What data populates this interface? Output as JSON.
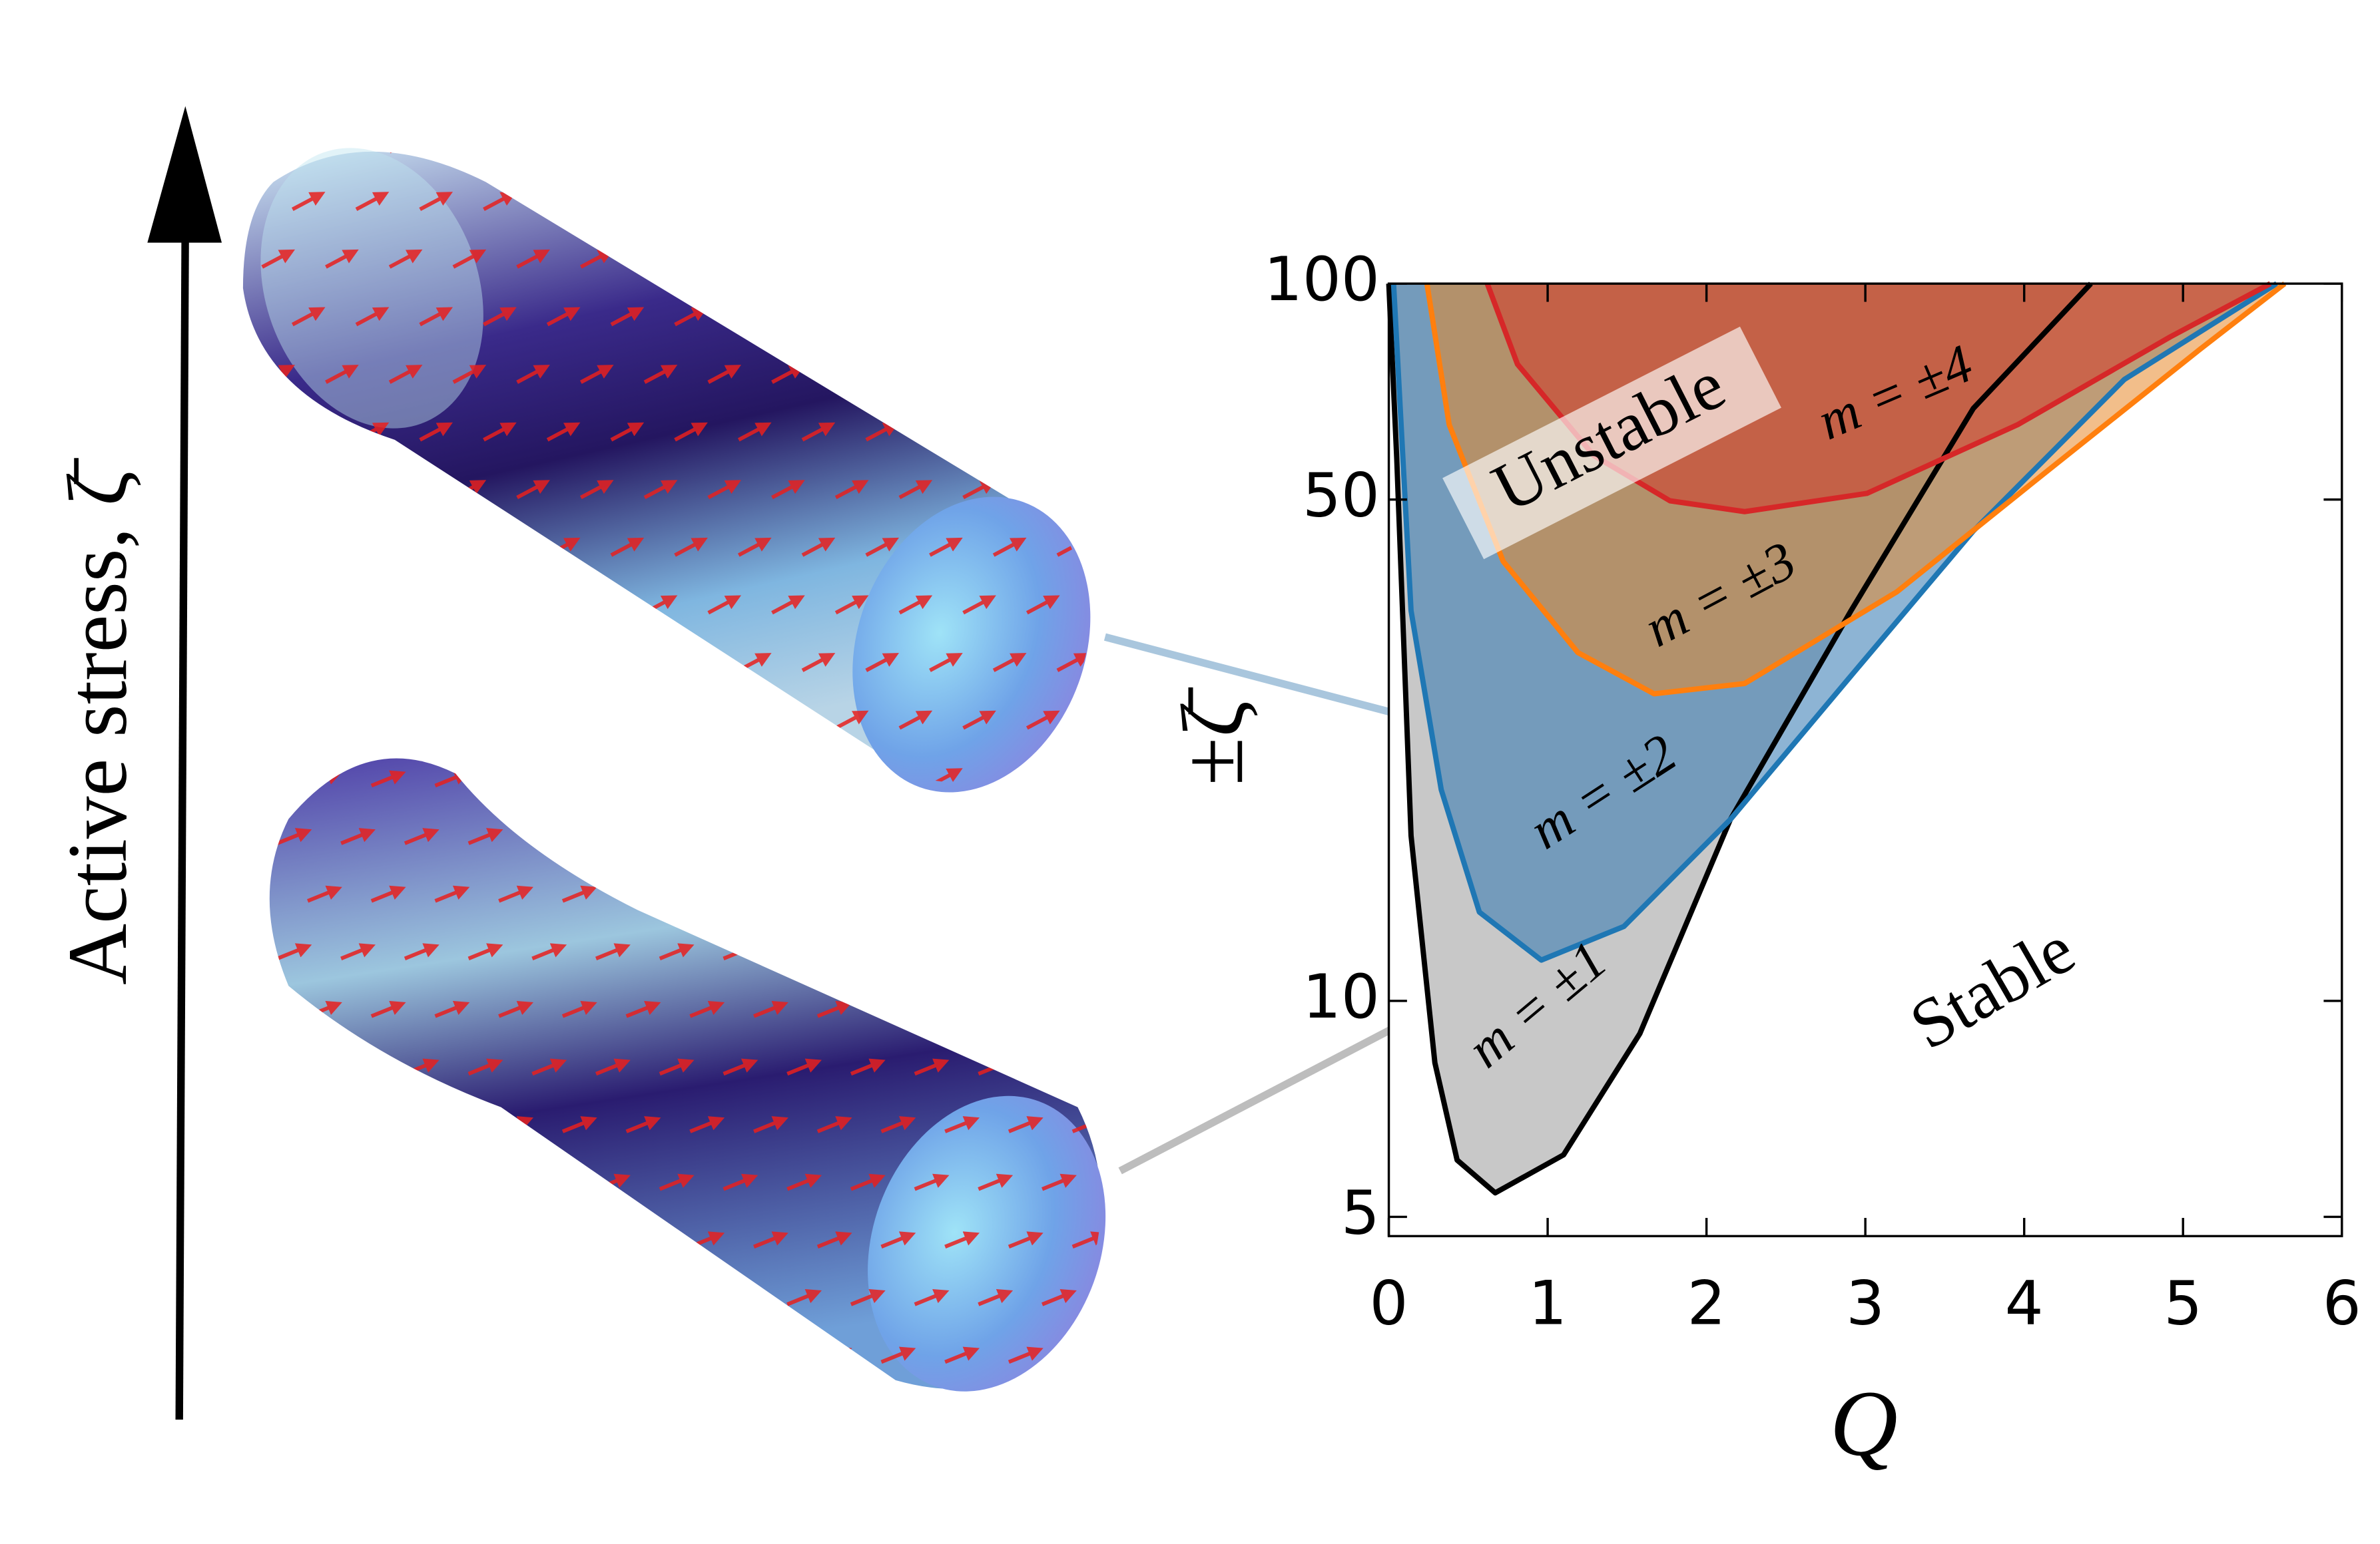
{
  "chart_data": {
    "type": "area",
    "xlabel": "Q",
    "ylabel": "±ζ̄",
    "side_label": "Active stress, ζ̄",
    "annotations": [
      "Unstable",
      "Stable"
    ],
    "xlim": [
      0,
      6
    ],
    "ylim": [
      4.7,
      100
    ],
    "log_y": true,
    "xticks": [
      0,
      1,
      2,
      3,
      4,
      5,
      6
    ],
    "yticks": [
      5,
      10,
      50,
      100
    ],
    "series": [
      {
        "name": "m = ±1",
        "color": "#000000",
        "fill": "#9a9a9a",
        "x": [
          0.0,
          0.05,
          0.14,
          0.29,
          0.43,
          0.67,
          1.1,
          1.58,
          2.15,
          2.91,
          3.68,
          4.42
        ],
        "values": [
          100,
          57,
          17,
          8.2,
          6.0,
          5.4,
          6.1,
          9.0,
          17.9,
          35,
          67,
          100
        ]
      },
      {
        "name": "m = ±2",
        "color": "#1f77b4",
        "fill": "#2f77b0",
        "x": [
          0.03,
          0.14,
          0.33,
          0.57,
          0.96,
          1.48,
          2.15,
          2.91,
          3.68,
          4.63,
          5.59
        ],
        "values": [
          100,
          35,
          19.7,
          13.3,
          11.4,
          12.7,
          17.9,
          28.4,
          45.2,
          73.5,
          100
        ]
      },
      {
        "name": "m = ±3",
        "color": "#ff7f0e",
        "fill": "#e8892a",
        "x": [
          0.24,
          0.38,
          0.72,
          1.19,
          1.67,
          2.24,
          3.2,
          4.15,
          5.11,
          5.64
        ],
        "values": [
          100,
          63.6,
          41,
          30.6,
          26.8,
          27.7,
          37.2,
          54.9,
          81.1,
          100
        ]
      },
      {
        "name": "m = ±4",
        "color": "#d62728",
        "fill": "#d23a2a",
        "x": [
          0.62,
          0.81,
          1.29,
          1.77,
          2.24,
          3.01,
          3.96,
          4.92,
          5.55
        ],
        "values": [
          100,
          77.2,
          57.6,
          49.8,
          48.1,
          51.0,
          63.6,
          84.3,
          100
        ]
      }
    ]
  }
}
